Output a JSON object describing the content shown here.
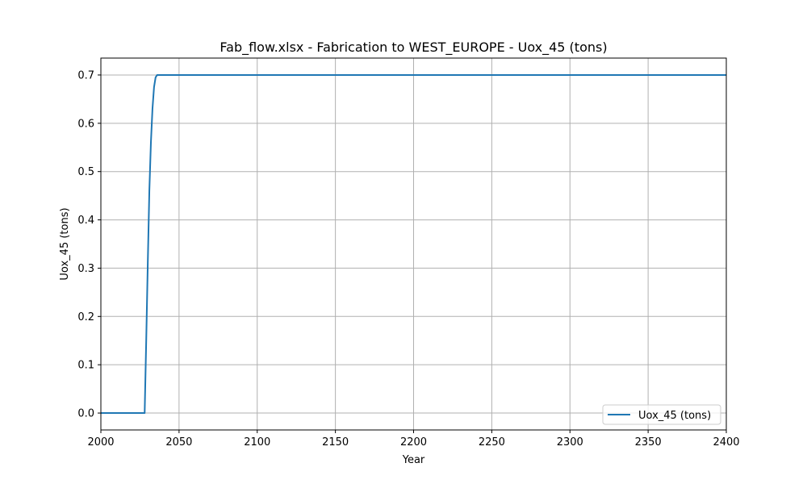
{
  "chart_data": {
    "type": "line",
    "title": "Fab_flow.xlsx - Fabrication to WEST_EUROPE - Uox_45 (tons)",
    "xlabel": "Year",
    "ylabel": "Uox_45 (tons)",
    "xlim": [
      2000,
      2400
    ],
    "ylim": [
      -0.035,
      0.735
    ],
    "xticks": [
      2000,
      2050,
      2100,
      2150,
      2200,
      2250,
      2300,
      2350,
      2400
    ],
    "yticks": [
      0.0,
      0.1,
      0.2,
      0.3,
      0.4,
      0.5,
      0.6,
      0.7
    ],
    "xtick_labels": [
      "2000",
      "2050",
      "2100",
      "2150",
      "2200",
      "2250",
      "2300",
      "2350",
      "2400"
    ],
    "ytick_labels": [
      "0.0",
      "0.1",
      "0.2",
      "0.3",
      "0.4",
      "0.5",
      "0.6",
      "0.7"
    ],
    "grid": true,
    "legend_position": "lower-right",
    "series": [
      {
        "name": "Uox_45 (tons)",
        "color": "#1f77b4",
        "x": [
          2000,
          2028,
          2029,
          2030,
          2031,
          2032,
          2033,
          2034,
          2035,
          2036,
          2400
        ],
        "y": [
          0.0,
          0.0,
          0.15,
          0.31,
          0.46,
          0.56,
          0.63,
          0.675,
          0.695,
          0.7,
          0.7
        ]
      }
    ]
  }
}
